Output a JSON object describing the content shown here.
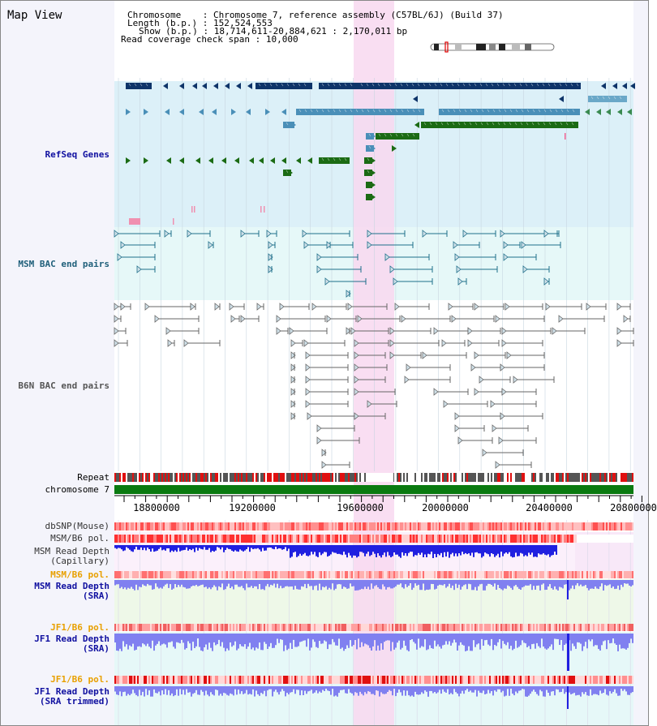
{
  "header": {
    "title": "Map View",
    "chromosome_label": "Chromosome",
    "chromosome_value": "Chromosome 7, reference assembly (C57BL/6J) (Build 37)",
    "length_label": "Length (b.p.)",
    "length_value": "152,524,553",
    "show_label": "Show (b.p.)",
    "show_value": "18,714,611-20,884,621 : 2,170,011 bp",
    "coverage_label": "Read coverage check span",
    "coverage_value": "10,000"
  },
  "tracks": {
    "refseq": "RefSeq Genes",
    "msm_bac": "MSM BAC end pairs",
    "b6n_bac": "B6N BAC end pairs",
    "repeat": "Repeat",
    "chromosome": "chromosome 7",
    "dbsnp": "dbSNP(Mouse)",
    "msm_b6_pol": "MSM/B6 pol.",
    "msm_depth_cap_1": "MSM Read Depth",
    "msm_depth_cap_2": "(Capillary)",
    "msm_b6_pol2": "MSM/B6 pol.",
    "msm_depth_sra_1": "MSM Read Depth",
    "msm_depth_sra_2": "(SRA)",
    "jf1_b6_pol": "JF1/B6 pol.",
    "jf1_depth_sra_1": "JF1 Read Depth",
    "jf1_depth_sra_2": "(SRA)",
    "jf1_b6_pol2": "JF1/B6 pol.",
    "jf1_depth_trim_1": "JF1 Read Depth",
    "jf1_depth_trim_2": "(SRA trimmed)"
  },
  "axis": {
    "ticks": [
      "18800000",
      "19200000",
      "19600000",
      "20000000",
      "20400000",
      "20800000"
    ]
  },
  "colors": {
    "refseq_bg": "#dcf0f8",
    "msm_bg": "#e6f8f8",
    "highlight": "#f8d8f0",
    "navy": "#0e3469",
    "steel": "#4a8fb8",
    "green": "#1b6b14",
    "teal": "#1f6f8a",
    "gray": "#666666",
    "depth_blue": "#2020e0",
    "depth_light": "#8080f0",
    "label_blue": "#1010a0",
    "label_orange": "#e8a000",
    "label_teal": "#1f5f7a"
  }
}
